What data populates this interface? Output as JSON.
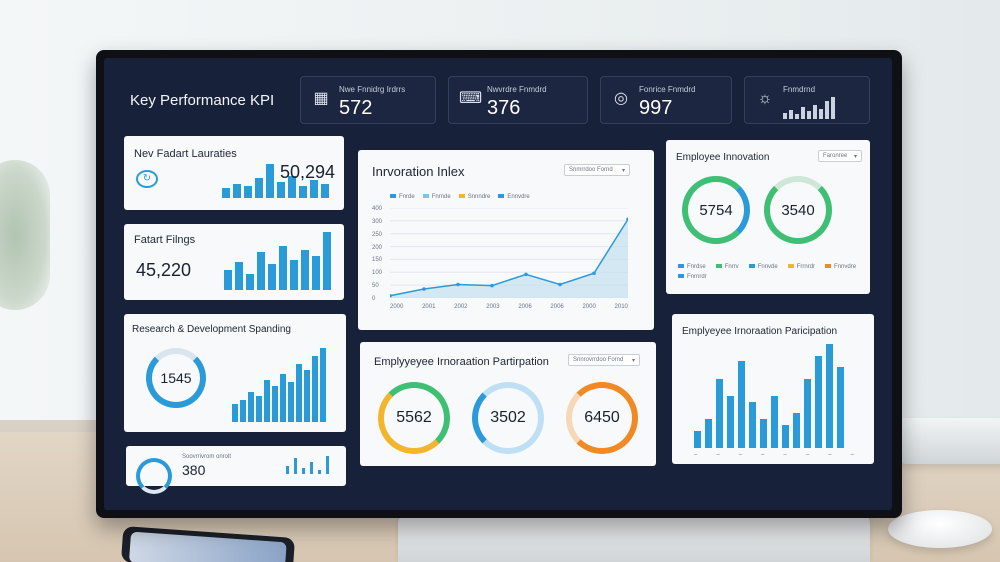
{
  "kpi_header": {
    "title": "Key Performance KPI",
    "boxes": [
      {
        "icon": "grid-icon",
        "label": "Nwe Fnnidrg Irdrrs",
        "value": "572"
      },
      {
        "icon": "chat-icon",
        "label": "Nwvrdre Fnmdrd",
        "value": "376"
      },
      {
        "icon": "target-icon",
        "label": "Fonrice Fnmdrd",
        "value": "997"
      },
      {
        "icon": "sun-icon",
        "label": "Fnmdrnd",
        "value": ""
      }
    ]
  },
  "cards": {
    "product_launches": {
      "title": "Nev Fadart Lauraties",
      "value": "50,294",
      "icon": "refresh-icon"
    },
    "patent_filings": {
      "title": "Fatart Filngs",
      "value": "45,220"
    },
    "rd_spending": {
      "title": "Research & Development Spanding",
      "ring_value": "1545"
    },
    "bottom_left": {
      "label": "Soovrrivrom onrolt",
      "value": "380"
    },
    "innovation_index": {
      "title": "Inrvoration Inlex",
      "dropdown": "Snmrrdoo Fornd",
      "legend": [
        "Fnrde",
        "Fnrnde",
        "Snnndre",
        "Ennvdre"
      ],
      "yticks": [
        "400",
        "300",
        "250",
        "200",
        "150",
        "100",
        "50",
        "0"
      ],
      "xticks": [
        "2000",
        "2001",
        "2002",
        "2003",
        "2006",
        "2006",
        "2000",
        "2010"
      ]
    },
    "employee_innovation": {
      "title": "Employee Innovation",
      "dropdown": "Faronree",
      "rings": [
        "5754",
        "3540"
      ],
      "legend": [
        "Fnrdse",
        "Fnrrv",
        "Fnnvde",
        "Frrnrdr",
        "Fnnvdre",
        "Fnrnrdr"
      ]
    },
    "employee_participation": {
      "title": "Emplyyeyee Irnoraation Partirpation",
      "dropdown": "Snnrovrrdoo Fornd",
      "rings": [
        "5562",
        "3502",
        "6450"
      ]
    },
    "employee_innovation_participation": {
      "title": "Emplyeyee Irnoraation Paricipation"
    }
  },
  "colors": {
    "bar": "#2b9ad8",
    "ring_green": "#3fbf73",
    "ring_yellow": "#f2b52e",
    "ring_orange": "#f08a24",
    "ring_blue": "#2b9ad8"
  },
  "chart_data": [
    {
      "type": "line",
      "title": "Inrvoration Inlex",
      "x": [
        "2000",
        "2001",
        "2002",
        "2003",
        "2006",
        "2006",
        "2000",
        "2010"
      ],
      "series": [
        {
          "values": [
            10,
            40,
            60,
            55,
            105,
            60,
            110,
            350
          ]
        }
      ],
      "ylim": [
        0,
        400
      ]
    },
    {
      "type": "bar",
      "title": "Emplyeyee Irnoraation Paricipation",
      "values": [
        30,
        50,
        120,
        90,
        150,
        80,
        50,
        90,
        40,
        60,
        120,
        160,
        180,
        140
      ]
    }
  ]
}
